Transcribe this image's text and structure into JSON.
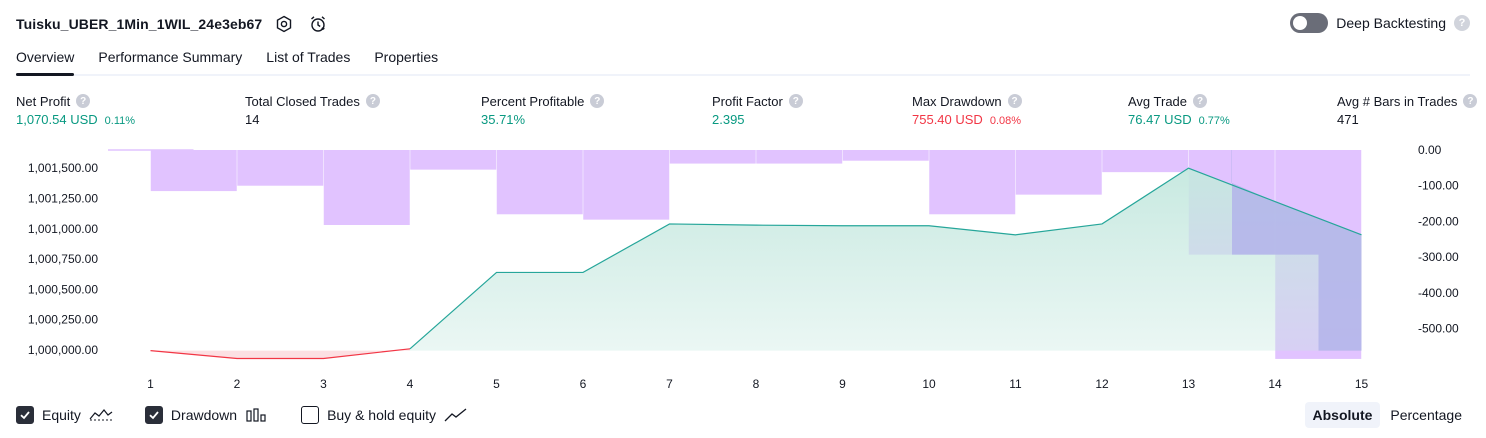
{
  "header": {
    "strategy_name": "Tuisku_UBER_1Min_1WIL_24e3eb67",
    "settings_icon": "settings-icon",
    "alarm_icon": "alarm-clock-icon",
    "deep_backtesting_label": "Deep Backtesting",
    "deep_backtesting_on": false,
    "help_glyph": "?"
  },
  "tabs": [
    "Overview",
    "Performance Summary",
    "List of Trades",
    "Properties"
  ],
  "metrics": [
    {
      "label": "Net Profit",
      "value": "1,070.54 USD",
      "pct": "0.11%",
      "tone": "pos"
    },
    {
      "label": "Total Closed Trades",
      "value": "14",
      "pct": "",
      "tone": "neu"
    },
    {
      "label": "Percent Profitable",
      "value": "35.71%",
      "pct": "",
      "tone": "pos"
    },
    {
      "label": "Profit Factor",
      "value": "2.395",
      "pct": "",
      "tone": "pos"
    },
    {
      "label": "Max Drawdown",
      "value": "755.40 USD",
      "pct": "0.08%",
      "tone": "neg"
    },
    {
      "label": "Avg Trade",
      "value": "76.47 USD",
      "pct": "0.77%",
      "tone": "pos"
    },
    {
      "label": "Avg # Bars in Trades",
      "value": "471",
      "pct": "",
      "tone": "neu"
    }
  ],
  "colors": {
    "equity_up": "#26a69a",
    "equity_down": "#f23645",
    "equity_fill": "#c5e8df",
    "drawdown_bar": "#e1c3ff",
    "equity_drawdown_overlap": "#b3b4ea"
  },
  "chart_data": {
    "type": "line",
    "x": [
      1,
      2,
      3,
      4,
      5,
      6,
      7,
      8,
      9,
      10,
      11,
      12,
      13,
      14,
      15
    ],
    "series": [
      {
        "name": "Equity",
        "axis": "left",
        "values": [
          999995,
          999930,
          999930,
          1000010,
          1000640,
          1000640,
          1001040,
          1001030,
          1001025,
          1001025,
          1000950,
          1001040,
          1001500,
          1001225,
          1000950
        ]
      },
      {
        "name": "Drawdown",
        "axis": "right",
        "type": "bar",
        "values": [
          -3,
          -115,
          -100,
          -210,
          -55,
          -180,
          -195,
          -38,
          -38,
          -30,
          -180,
          -125,
          -62,
          -293,
          -585
        ]
      }
    ],
    "left_axis": {
      "ticks": [
        "1,000,000.00",
        "1,000,250.00",
        "1,000,500.00",
        "1,000,750.00",
        "1,001,000.00",
        "1,001,250.00",
        "1,001,500.00"
      ],
      "range": [
        1000000,
        1001650
      ]
    },
    "right_axis": {
      "ticks": [
        "0.00",
        "-100.00",
        "-200.00",
        "-300.00",
        "-400.00",
        "-500.00"
      ],
      "range": [
        0,
        -560
      ]
    },
    "x_tick_labels": [
      "1",
      "2",
      "3",
      "4",
      "5",
      "6",
      "7",
      "8",
      "9",
      "10",
      "11",
      "12",
      "13",
      "14",
      "15"
    ],
    "grid": false
  },
  "footer": {
    "equity_label": "Equity",
    "equity_checked": true,
    "drawdown_label": "Drawdown",
    "drawdown_checked": true,
    "buyhold_label": "Buy & hold equity",
    "buyhold_checked": false,
    "absolute_label": "Absolute",
    "percentage_label": "Percentage",
    "mode_selected": "Absolute"
  }
}
